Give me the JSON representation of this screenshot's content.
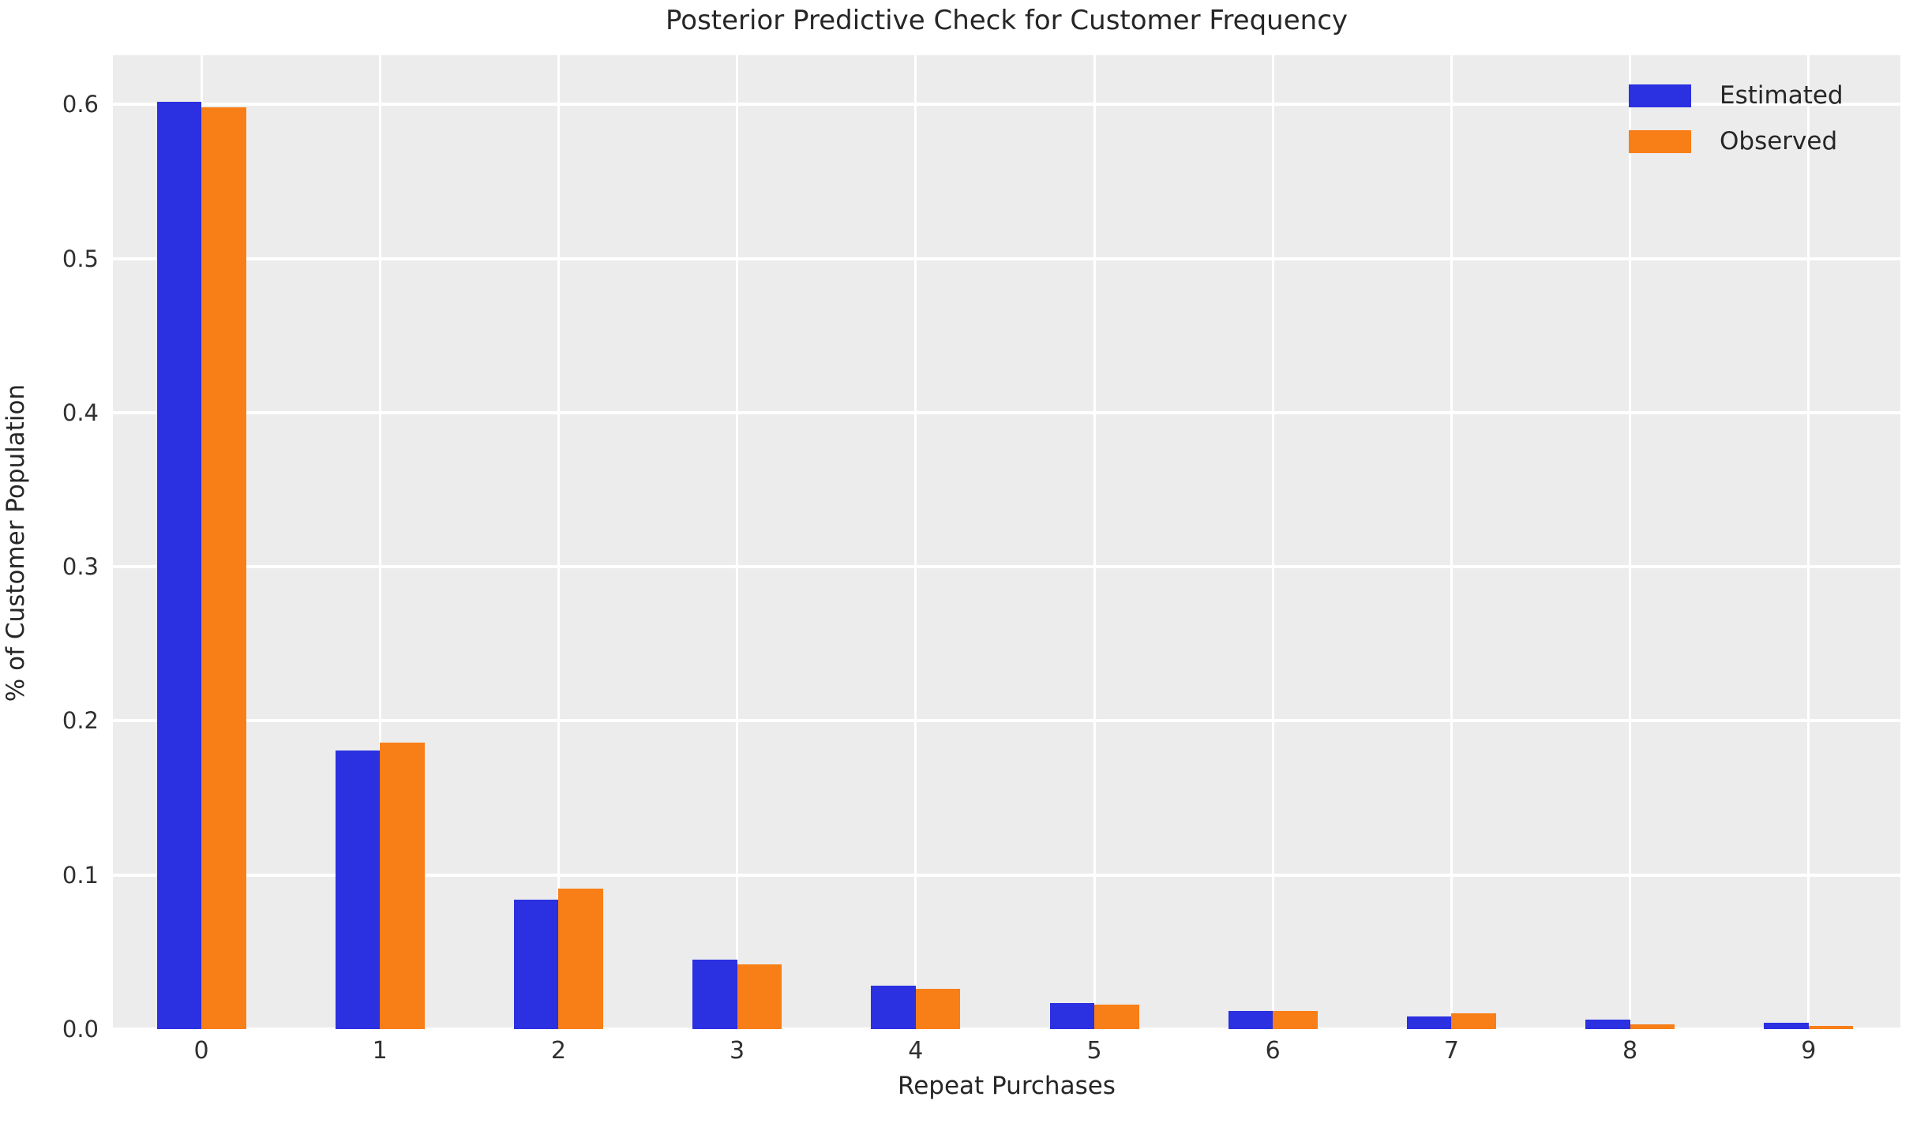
{
  "figure": {
    "title": "Posterior Predictive Check for Customer Frequency",
    "xlabel": "Repeat Purchases",
    "ylabel": "% of Customer Population"
  },
  "legend": {
    "items": [
      {
        "label": "Estimated",
        "color": "#2b30e1"
      },
      {
        "label": "Observed",
        "color": "#f87e17"
      }
    ]
  },
  "chart_data": {
    "type": "bar",
    "title": "Posterior Predictive Check for Customer Frequency",
    "xlabel": "Repeat Purchases",
    "ylabel": "% of Customer Population",
    "categories": [
      "0",
      "1",
      "2",
      "3",
      "4",
      "5",
      "6",
      "7",
      "8",
      "9"
    ],
    "series": [
      {
        "name": "Estimated",
        "color": "#2b30e1",
        "values": [
          0.602,
          0.181,
          0.084,
          0.045,
          0.028,
          0.017,
          0.012,
          0.008,
          0.006,
          0.004
        ]
      },
      {
        "name": "Observed",
        "color": "#f87e17",
        "values": [
          0.598,
          0.186,
          0.091,
          0.042,
          0.026,
          0.016,
          0.012,
          0.01,
          0.003,
          0.002
        ]
      }
    ],
    "ylim": [
      0,
      0.632
    ],
    "yticks": [
      0.0,
      0.1,
      0.2,
      0.3,
      0.4,
      0.5,
      0.6
    ],
    "ytick_labels": [
      "0.0",
      "0.1",
      "0.2",
      "0.3",
      "0.4",
      "0.5",
      "0.6"
    ],
    "grid": true,
    "legend_position": "upper right",
    "style": {
      "plot_background": "#ececec",
      "grid_color": "#ffffff",
      "text_color": "#262626",
      "tick_color": "#303030",
      "figure_background": "#ffffff"
    }
  }
}
